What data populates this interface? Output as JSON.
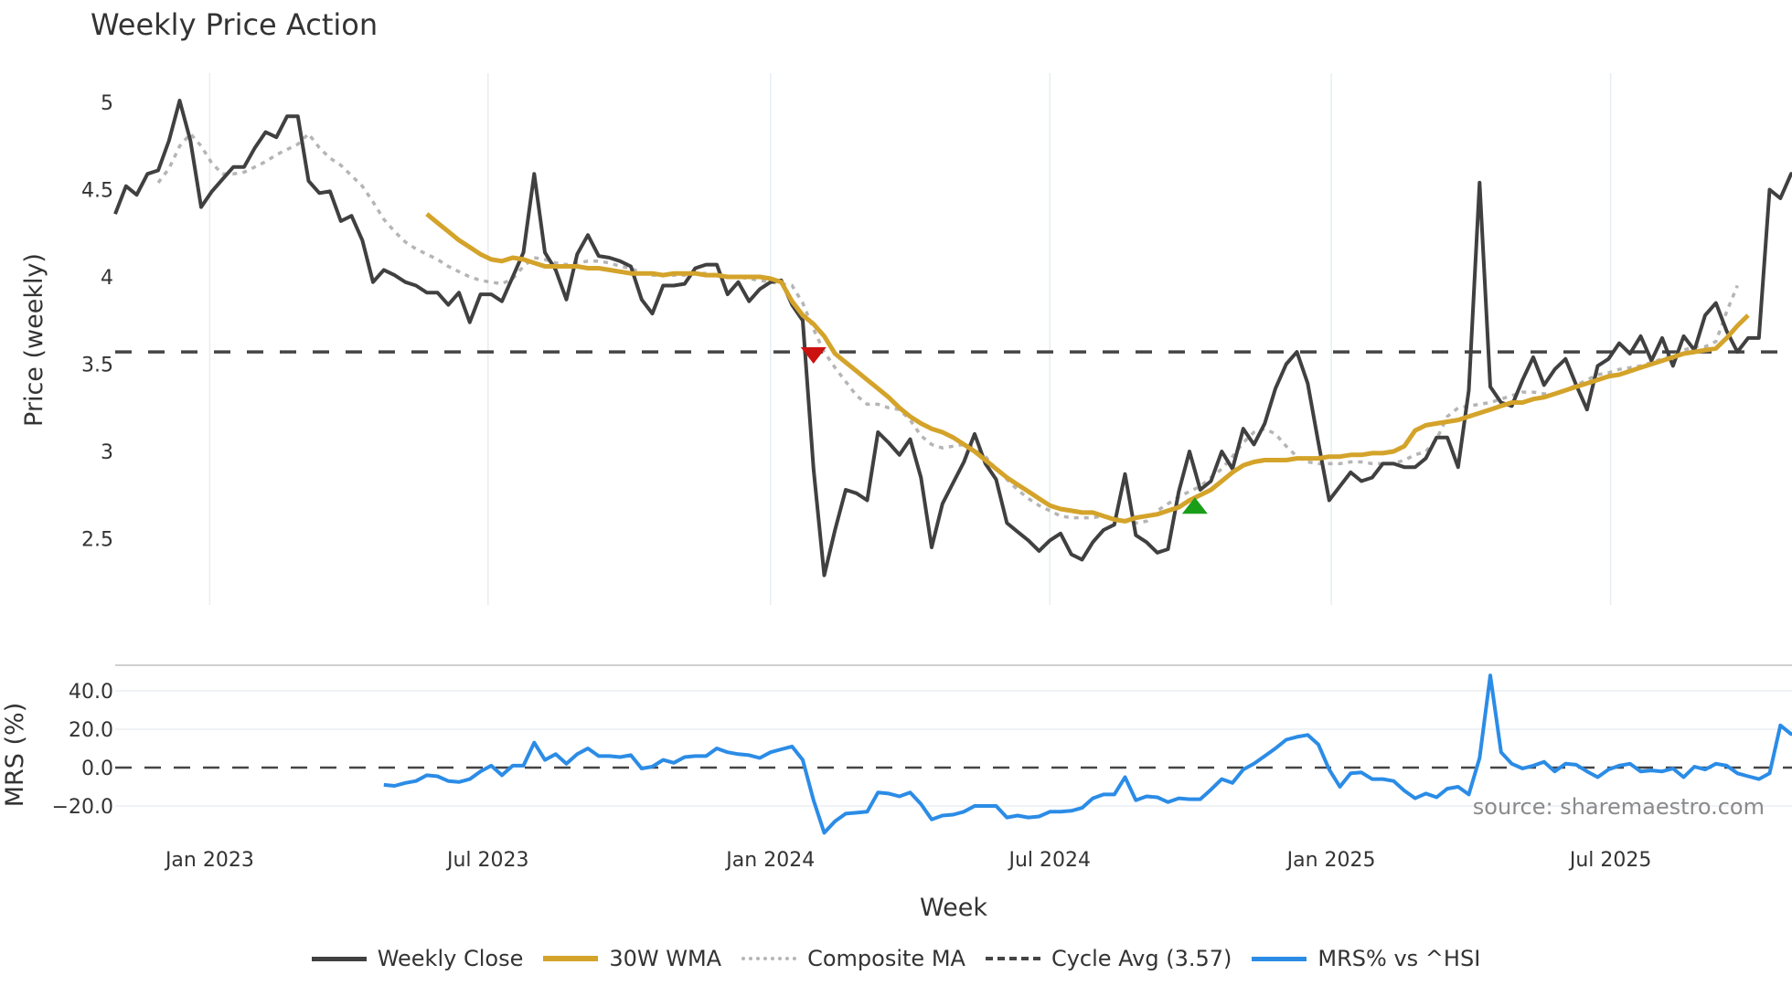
{
  "title": "Weekly Price Action",
  "source_note": "source: sharemaestro.com",
  "legend": [
    {
      "label": "Weekly Close",
      "color": "#404040",
      "style": "solid"
    },
    {
      "label": "30W WMA",
      "color": "#d4a32a",
      "style": "solid"
    },
    {
      "label": "Composite MA",
      "color": "#b5b5b5",
      "style": "dotted"
    },
    {
      "label": "Cycle Avg (3.57)",
      "color": "#454545",
      "style": "dashed"
    },
    {
      "label": "MRS% vs ^HSI",
      "color": "#2b8ce6",
      "style": "solid"
    }
  ],
  "chart_data": [
    {
      "type": "line",
      "title": "Weekly Price Action",
      "xlabel": "Week",
      "ylabel": "Price (weekly)",
      "ylim": [
        2.15,
        5.15
      ],
      "yticks": [
        5,
        4.5,
        4,
        3.5,
        3,
        2.5
      ],
      "ytick_labels": [
        "5",
        "4.5",
        "4",
        "3.5",
        "3",
        "2.5"
      ],
      "xtick_labels": [
        "Jan 2023",
        "Jul 2023",
        "Jan 2024",
        "Jul 2024",
        "Jan 2025",
        "Jul 2025"
      ],
      "xtick_weeks": [
        8.8,
        34.7,
        61.0,
        87.0,
        113.2,
        139.2
      ],
      "grid": "vertical",
      "cycle_avg": 3.57,
      "markers": [
        {
          "type": "sell",
          "shape": "triangle-down",
          "color": "#cc1111",
          "week": 65.0,
          "value": 3.55
        },
        {
          "type": "buy",
          "shape": "triangle-up",
          "color": "#1a9e1a",
          "week": 100.5,
          "value": 2.69
        }
      ],
      "series": [
        {
          "name": "Weekly Close",
          "color": "#404040",
          "values": [
            4.36,
            4.52,
            4.47,
            4.59,
            4.61,
            4.78,
            5.01,
            4.78,
            4.4,
            4.49,
            4.56,
            4.63,
            4.63,
            4.74,
            4.83,
            4.8,
            4.92,
            4.92,
            4.55,
            4.48,
            4.49,
            4.32,
            4.35,
            4.21,
            3.97,
            4.04,
            4.01,
            3.97,
            3.95,
            3.91,
            3.91,
            3.84,
            3.91,
            3.74,
            3.9,
            3.9,
            3.86,
            4.0,
            4.14,
            4.59,
            4.14,
            4.04,
            3.87,
            4.13,
            4.24,
            4.12,
            4.11,
            4.09,
            4.06,
            3.87,
            3.79,
            3.95,
            3.95,
            3.96,
            4.05,
            4.07,
            4.07,
            3.9,
            3.97,
            3.86,
            3.93,
            3.97,
            3.98,
            3.84,
            3.75,
            2.9,
            2.29,
            2.55,
            2.78,
            2.76,
            2.72,
            3.11,
            3.05,
            2.98,
            3.07,
            2.85,
            2.45,
            2.7,
            2.82,
            2.94,
            3.1,
            2.93,
            2.84,
            2.59,
            2.54,
            2.49,
            2.43,
            2.49,
            2.53,
            2.41,
            2.38,
            2.48,
            2.55,
            2.58,
            2.87,
            2.52,
            2.48,
            2.42,
            2.44,
            2.77,
            3.0,
            2.78,
            2.83,
            3.0,
            2.9,
            3.13,
            3.04,
            3.16,
            3.36,
            3.5,
            3.57,
            3.39,
            3.05,
            2.72,
            2.8,
            2.88,
            2.83,
            2.85,
            2.93,
            2.93,
            2.91,
            2.91,
            2.96,
            3.08,
            3.08,
            2.91,
            3.35,
            4.54,
            3.37,
            3.28,
            3.26,
            3.41,
            3.54,
            3.38,
            3.47,
            3.53,
            3.38,
            3.24,
            3.49,
            3.53,
            3.62,
            3.56,
            3.66,
            3.52,
            3.65,
            3.49,
            3.66,
            3.58,
            3.78,
            3.85,
            3.69,
            3.57,
            3.65,
            3.65,
            4.5,
            4.45,
            4.59,
            4.59
          ]
        },
        {
          "name": "30W WMA",
          "color": "#d4a32a",
          "start_week": 29,
          "values": [
            4.36,
            4.31,
            4.26,
            4.21,
            4.17,
            4.13,
            4.1,
            4.09,
            4.11,
            4.1,
            4.08,
            4.06,
            4.06,
            4.06,
            4.06,
            4.05,
            4.05,
            4.04,
            4.03,
            4.02,
            4.02,
            4.02,
            4.01,
            4.02,
            4.02,
            4.02,
            4.01,
            4.01,
            4.0,
            4.0,
            4.0,
            4.0,
            3.99,
            3.97,
            3.86,
            3.78,
            3.73,
            3.66,
            3.56,
            3.51,
            3.46,
            3.41,
            3.36,
            3.31,
            3.25,
            3.2,
            3.16,
            3.13,
            3.11,
            3.08,
            3.04,
            3.0,
            2.95,
            2.9,
            2.85,
            2.81,
            2.77,
            2.73,
            2.69,
            2.67,
            2.66,
            2.65,
            2.65,
            2.63,
            2.61,
            2.6,
            2.62,
            2.63,
            2.64,
            2.66,
            2.68,
            2.72,
            2.75,
            2.78,
            2.83,
            2.88,
            2.92,
            2.94,
            2.95,
            2.95,
            2.95,
            2.96,
            2.96,
            2.96,
            2.97,
            2.97,
            2.98,
            2.98,
            2.99,
            2.99,
            3.0,
            3.03,
            3.12,
            3.15,
            3.16,
            3.17,
            3.18,
            3.2,
            3.22,
            3.24,
            3.26,
            3.28,
            3.28,
            3.3,
            3.31,
            3.33,
            3.35,
            3.37,
            3.39,
            3.41,
            3.43,
            3.44,
            3.46,
            3.48,
            3.5,
            3.52,
            3.54,
            3.56,
            3.57,
            3.58,
            3.59,
            3.65,
            3.72,
            3.78
          ]
        },
        {
          "name": "Composite MA",
          "color": "#b5b5b5",
          "start_week": 4,
          "values": [
            4.54,
            4.62,
            4.75,
            4.82,
            4.75,
            4.65,
            4.59,
            4.59,
            4.6,
            4.63,
            4.66,
            4.7,
            4.73,
            4.76,
            4.82,
            4.74,
            4.68,
            4.64,
            4.58,
            4.52,
            4.43,
            4.33,
            4.26,
            4.2,
            4.16,
            4.13,
            4.1,
            4.06,
            4.03,
            4.0,
            3.98,
            3.97,
            3.96,
            3.99,
            4.06,
            4.11,
            4.1,
            4.08,
            4.07,
            4.08,
            4.09,
            4.09,
            4.08,
            4.06,
            4.05,
            4.02,
            4.01,
            4.01,
            4.01,
            4.01,
            4.02,
            4.02,
            4.01,
            4.0,
            4.0,
            3.99,
            3.98,
            3.97,
            3.96,
            3.95,
            3.85,
            3.7,
            3.57,
            3.48,
            3.4,
            3.32,
            3.27,
            3.27,
            3.25,
            3.24,
            3.18,
            3.09,
            3.04,
            3.02,
            3.03,
            3.04,
            3.02,
            2.97,
            2.9,
            2.84,
            2.78,
            2.73,
            2.69,
            2.66,
            2.63,
            2.62,
            2.62,
            2.62,
            2.63,
            2.62,
            2.6,
            2.59,
            2.6,
            2.66,
            2.7,
            2.74,
            2.77,
            2.8,
            2.85,
            2.9,
            2.97,
            3.05,
            3.11,
            3.13,
            3.1,
            3.03,
            2.97,
            2.94,
            2.93,
            2.93,
            2.93,
            2.94,
            2.94,
            2.93,
            2.93,
            2.93,
            2.95,
            2.98,
            3.0,
            3.07,
            3.2,
            3.25,
            3.26,
            3.27,
            3.28,
            3.3,
            3.32,
            3.34,
            3.34,
            3.33,
            3.33,
            3.35,
            3.38,
            3.41,
            3.44,
            3.45,
            3.47,
            3.48,
            3.49,
            3.51,
            3.53,
            3.55,
            3.58,
            3.6,
            3.6,
            3.63,
            3.8,
            3.95
          ]
        }
      ]
    },
    {
      "type": "line",
      "ylabel": "MRS (%)",
      "ylim": [
        -35,
        55
      ],
      "yticks": [
        40,
        20,
        0,
        -20
      ],
      "ytick_labels": [
        "40.0",
        "20.0",
        "0.0",
        "−20.0"
      ],
      "zero_line": "dashed",
      "series": [
        {
          "name": "MRS% vs ^HSI",
          "color": "#2b8ce6",
          "start_week": 25,
          "values": [
            -9,
            -9.5,
            -8,
            -7,
            -4,
            -4.5,
            -7,
            -7.5,
            -6,
            -2,
            1,
            -4,
            1,
            1,
            13,
            4,
            7,
            2,
            7,
            10,
            6,
            6,
            5.5,
            6.5,
            -0.5,
            0.5,
            4,
            2.5,
            5.5,
            6,
            6,
            10,
            8,
            7,
            6.5,
            5,
            8,
            9.5,
            11,
            4,
            -17,
            -34,
            -28,
            -24,
            -23.5,
            -23,
            -13,
            -13.5,
            -15,
            -13,
            -19,
            -27,
            -25,
            -24.5,
            -23,
            -20,
            -20,
            -20,
            -26,
            -25,
            -26,
            -25.5,
            -23,
            -23,
            -22.5,
            -21,
            -16,
            -14,
            -14,
            -5,
            -17,
            -15,
            -15.5,
            -18,
            -16,
            -16.5,
            -16.5,
            -11.5,
            -6,
            -8,
            -1,
            2,
            6,
            10,
            14.5,
            16,
            17,
            12,
            -1,
            -10,
            -3,
            -2.5,
            -6,
            -6,
            -7,
            -12,
            -16,
            -13.5,
            -15.5,
            -11,
            -10,
            -14,
            5,
            48,
            8,
            2,
            -0.5,
            1,
            3,
            -2,
            2,
            1.5,
            -2,
            -5,
            -1,
            1,
            2,
            -2,
            -1.5,
            -2,
            -0.5,
            -5,
            0.5,
            -1,
            2,
            1,
            -3,
            -4.5,
            -6,
            -3,
            22,
            17.5,
            18.5
          ]
        }
      ]
    }
  ]
}
